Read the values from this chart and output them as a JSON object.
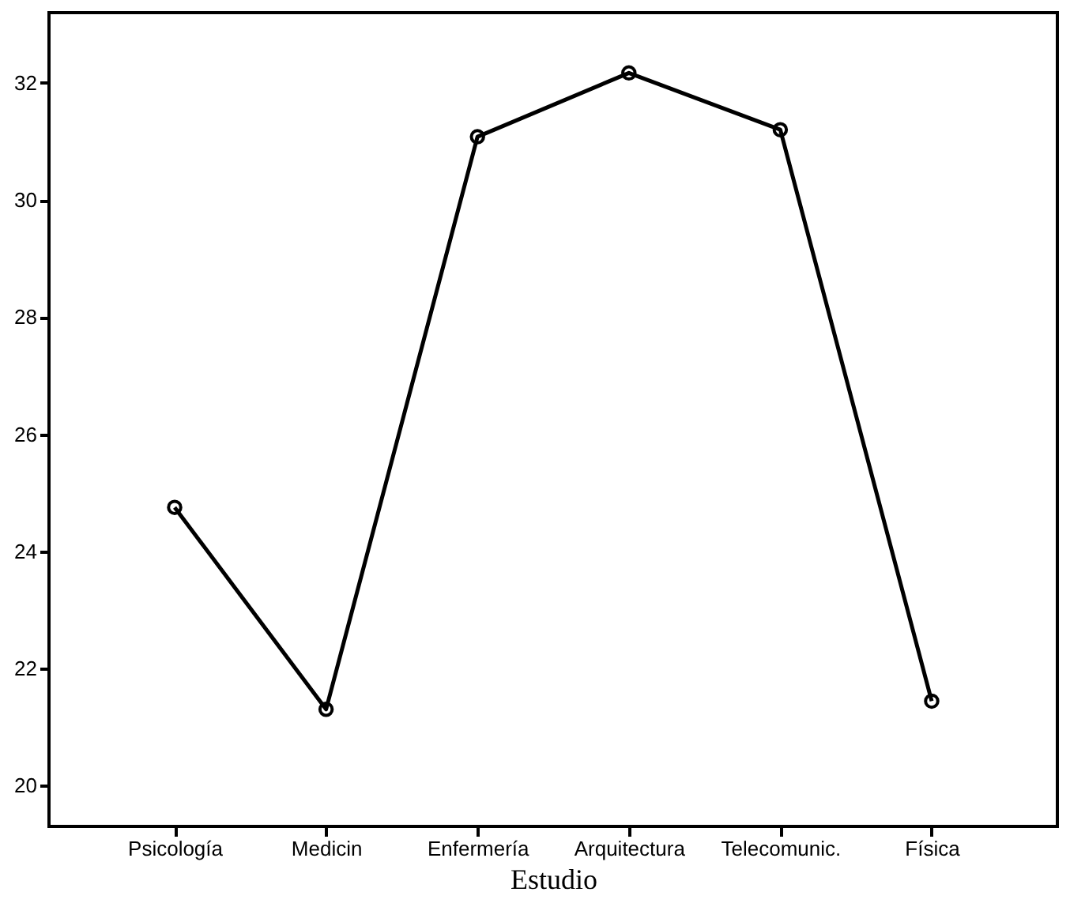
{
  "chart_data": {
    "type": "line",
    "xlabel": "Estudio",
    "categories": [
      "Psicología",
      "Medicin",
      "Enfermería",
      "Arquitectura",
      "Telecomunic.",
      "Física"
    ],
    "series": [
      {
        "color": "#000000",
        "values": [
          24.75,
          21.3,
          31.08,
          32.17,
          31.2,
          21.44
        ]
      }
    ],
    "ylim": [
      19.3,
      33.2
    ],
    "yticks": [
      20,
      22,
      24,
      26,
      28,
      30,
      32
    ],
    "grid": false,
    "marker": "circle",
    "line_style": "solid"
  }
}
